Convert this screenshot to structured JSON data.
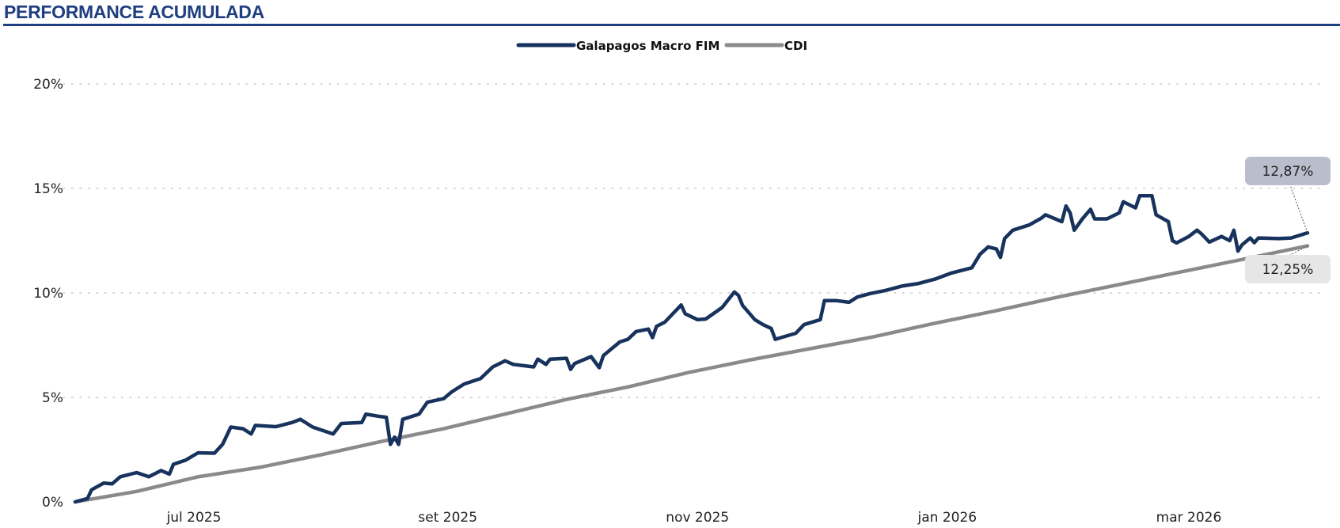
{
  "title": "PERFORMANCE ACUMULADA",
  "chart_data": {
    "type": "line",
    "title": "PERFORMANCE ACUMULADA",
    "xlabel": "",
    "ylabel": "",
    "x_unit": "days since 2025-06-02",
    "xlim": [
      0,
      301
    ],
    "ylim": [
      0,
      20
    ],
    "yticks": [
      0,
      5,
      10,
      15,
      20
    ],
    "ytick_labels": [
      "0%",
      "5%",
      "10%",
      "15%",
      "20%"
    ],
    "xticks": [
      29,
      91,
      152,
      213,
      272
    ],
    "xtick_labels": [
      "jul 2025",
      "set 2025",
      "nov 2025",
      "jan 2026",
      "mar 2026"
    ],
    "grid": "horizontal dotted",
    "legend_position": "top-center",
    "series": [
      {
        "name": "Galapagos Macro FIM",
        "color": "#17325c",
        "end_label": "12,87%",
        "label_bg": "#b9bdcc",
        "x": [
          0,
          3,
          4,
          7,
          9,
          11,
          15,
          18,
          21,
          23,
          24,
          27,
          30,
          34,
          36,
          38,
          41,
          43,
          44,
          49,
          53,
          55,
          58,
          63,
          65,
          70,
          71,
          74,
          76,
          77,
          78,
          79,
          80,
          84,
          86,
          90,
          92,
          95,
          99,
          102,
          105,
          107,
          112,
          113,
          115,
          116,
          120,
          121,
          122,
          126,
          128,
          129,
          133,
          135,
          137,
          140,
          141,
          142,
          144,
          148,
          149,
          152,
          154,
          158,
          161,
          162,
          163,
          166,
          168,
          170,
          171,
          176,
          178,
          182,
          183,
          186,
          189,
          191,
          194,
          198,
          202,
          206,
          210,
          214,
          219,
          221,
          223,
          225,
          226,
          227,
          229,
          233,
          236,
          237,
          241,
          242,
          243,
          244,
          246,
          248,
          249,
          252,
          255,
          256,
          259,
          260,
          263,
          264,
          267,
          268,
          269,
          272,
          274,
          275,
          277,
          280,
          282,
          283,
          284,
          285,
          287,
          288,
          289,
          294,
          297,
          301
        ],
        "y": [
          0,
          0.16,
          0.58,
          0.9,
          0.86,
          1.2,
          1.4,
          1.2,
          1.5,
          1.33,
          1.8,
          2.0,
          2.35,
          2.33,
          2.75,
          3.58,
          3.5,
          3.25,
          3.66,
          3.6,
          3.8,
          3.95,
          3.58,
          3.25,
          3.75,
          3.8,
          4.2,
          4.1,
          4.05,
          2.75,
          3.1,
          2.75,
          3.95,
          4.2,
          4.77,
          4.94,
          5.27,
          5.64,
          5.9,
          6.46,
          6.75,
          6.58,
          6.46,
          6.83,
          6.58,
          6.83,
          6.87,
          6.34,
          6.62,
          6.95,
          6.42,
          7.0,
          7.65,
          7.78,
          8.15,
          8.27,
          7.86,
          8.4,
          8.6,
          9.42,
          9.0,
          8.72,
          8.75,
          9.3,
          10.04,
          9.88,
          9.4,
          8.72,
          8.48,
          8.3,
          7.78,
          8.07,
          8.48,
          8.72,
          9.63,
          9.63,
          9.55,
          9.8,
          9.96,
          10.12,
          10.33,
          10.45,
          10.66,
          10.95,
          11.2,
          11.85,
          12.2,
          12.1,
          11.7,
          12.6,
          13.0,
          13.25,
          13.58,
          13.74,
          13.41,
          14.16,
          13.83,
          13.0,
          13.54,
          14.0,
          13.54,
          13.54,
          13.83,
          14.36,
          14.07,
          14.65,
          14.65,
          13.74,
          13.41,
          12.5,
          12.39,
          12.7,
          13.0,
          12.84,
          12.43,
          12.7,
          12.5,
          13.0,
          12.0,
          12.3,
          12.63,
          12.4,
          12.63,
          12.6,
          12.63,
          12.87
        ]
      },
      {
        "name": "CDI",
        "color": "#8a8a8a",
        "end_label": "12,25%",
        "label_bg": "#e6e6e6",
        "x": [
          0,
          15,
          30,
          45,
          60,
          75,
          90,
          105,
          120,
          135,
          150,
          165,
          180,
          195,
          210,
          225,
          240,
          255,
          270,
          285,
          301
        ],
        "y": [
          0,
          0.5,
          1.2,
          1.65,
          2.25,
          2.9,
          3.5,
          4.2,
          4.9,
          5.5,
          6.2,
          6.8,
          7.35,
          7.9,
          8.55,
          9.15,
          9.8,
          10.4,
          11.0,
          11.6,
          12.25
        ]
      }
    ]
  }
}
